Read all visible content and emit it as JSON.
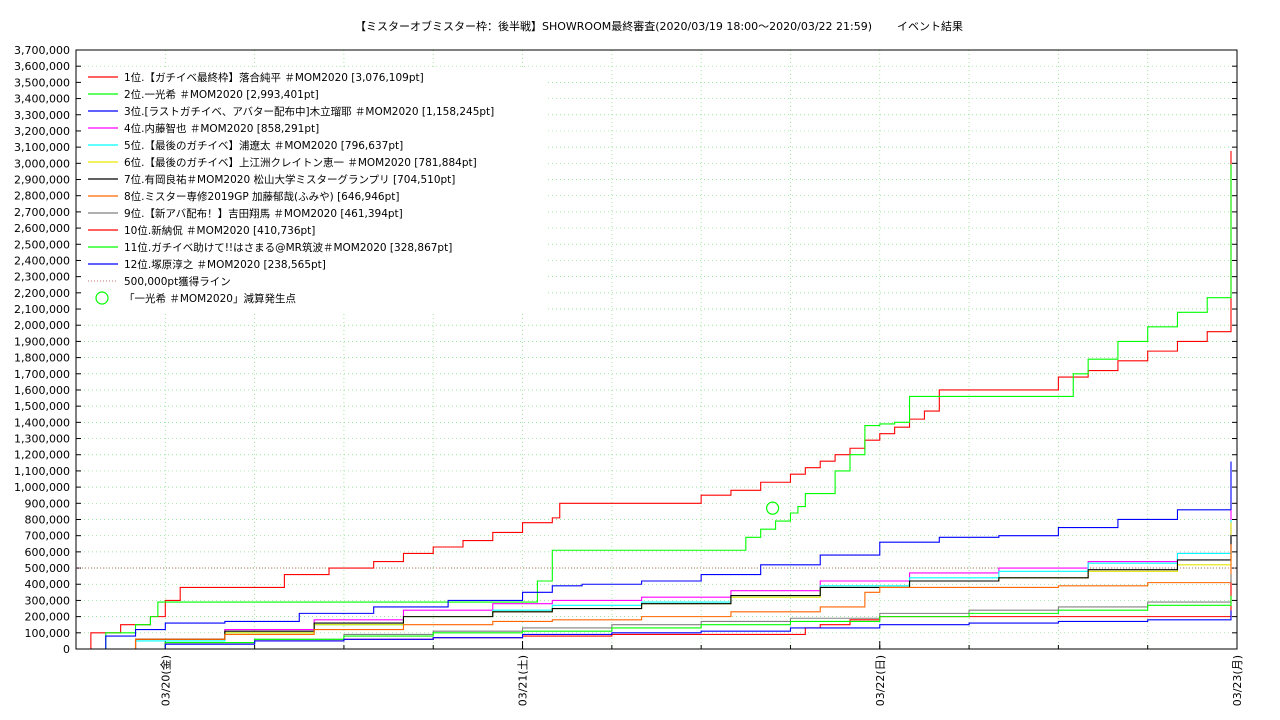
{
  "chart_data": {
    "type": "line",
    "title": "【ミスターオブミスター枠：後半戦】SHOWROOM最終審査(2020/03/19 18:00～2020/03/22 21:59)",
    "subtitle": "イベント結果",
    "xlabel": "",
    "ylabel": "",
    "ylim": [
      0,
      3700000
    ],
    "y_ticks": [
      "0",
      "100,000",
      "200,000",
      "300,000",
      "400,000",
      "500,000",
      "600,000",
      "700,000",
      "800,000",
      "900,000",
      "1,000,000",
      "1,100,000",
      "1,200,000",
      "1,300,000",
      "1,400,000",
      "1,500,000",
      "1,600,000",
      "1,700,000",
      "1,800,000",
      "1,900,000",
      "2,000,000",
      "2,100,000",
      "2,200,000",
      "2,300,000",
      "2,400,000",
      "2,500,000",
      "2,600,000",
      "2,700,000",
      "2,800,000",
      "2,900,000",
      "3,000,000",
      "3,100,000",
      "3,200,000",
      "3,300,000",
      "3,400,000",
      "3,500,000",
      "3,600,000",
      "3,700,000"
    ],
    "x_axis": "days since 2020/03/19 18:00",
    "xlim": [
      0,
      78
    ],
    "x_ticks": [
      {
        "label": "03/20(金)",
        "x": 6
      },
      {
        "label": "03/21(土)",
        "x": 30
      },
      {
        "label": "03/22(日)",
        "x": 54
      },
      {
        "label": "03/23(月)",
        "x": 78
      }
    ],
    "grid": true,
    "legend_position": "top-left",
    "series": [
      {
        "name": "1位.【ガチイベ最終枠】落合純平 ＃MOM2020 [3,076,109pt]",
        "color": "#ff0000",
        "points": [
          [
            0,
            0
          ],
          [
            1,
            100000
          ],
          [
            3,
            150000
          ],
          [
            5,
            200000
          ],
          [
            6,
            300000
          ],
          [
            7,
            380000
          ],
          [
            13,
            380000
          ],
          [
            14,
            460000
          ],
          [
            17,
            500000
          ],
          [
            20,
            540000
          ],
          [
            22,
            590000
          ],
          [
            24,
            630000
          ],
          [
            26,
            670000
          ],
          [
            28,
            720000
          ],
          [
            30,
            780000
          ],
          [
            32,
            810000
          ],
          [
            32.5,
            900000
          ],
          [
            36,
            900000
          ],
          [
            40,
            900000
          ],
          [
            42,
            950000
          ],
          [
            44,
            980000
          ],
          [
            46,
            1030000
          ],
          [
            48,
            1080000
          ],
          [
            49,
            1120000
          ],
          [
            50,
            1160000
          ],
          [
            51,
            1200000
          ],
          [
            52,
            1240000
          ],
          [
            53,
            1290000
          ],
          [
            54,
            1330000
          ],
          [
            55,
            1370000
          ],
          [
            56,
            1420000
          ],
          [
            57,
            1470000
          ],
          [
            58,
            1600000
          ],
          [
            61,
            1600000
          ],
          [
            64,
            1600000
          ],
          [
            66,
            1680000
          ],
          [
            68,
            1720000
          ],
          [
            70,
            1780000
          ],
          [
            72,
            1840000
          ],
          [
            74,
            1900000
          ],
          [
            76,
            1960000
          ],
          [
            78,
            2020000
          ],
          [
            80,
            2080000
          ],
          [
            82,
            2080000
          ],
          [
            82.5,
            3076109
          ],
          [
            85,
            3076109
          ]
        ]
      },
      {
        "name": "2位.一光希 ＃MOM2020 [2,993,401pt]",
        "color": "#00ff00",
        "points": [
          [
            0,
            0
          ],
          [
            2,
            100000
          ],
          [
            4,
            150000
          ],
          [
            5,
            200000
          ],
          [
            5.5,
            290000
          ],
          [
            20,
            290000
          ],
          [
            30,
            290000
          ],
          [
            31,
            420000
          ],
          [
            32,
            610000
          ],
          [
            40,
            610000
          ],
          [
            44,
            610000
          ],
          [
            45,
            690000
          ],
          [
            46,
            740000
          ],
          [
            47,
            790000
          ],
          [
            48,
            840000
          ],
          [
            48.5,
            880000
          ],
          [
            49,
            960000
          ],
          [
            50,
            960000
          ],
          [
            51,
            1100000
          ],
          [
            52,
            1200000
          ],
          [
            53,
            1380000
          ],
          [
            54,
            1390000
          ],
          [
            55,
            1400000
          ],
          [
            56,
            1560000
          ],
          [
            62,
            1560000
          ],
          [
            66,
            1560000
          ],
          [
            67,
            1700000
          ],
          [
            68,
            1790000
          ],
          [
            70,
            1900000
          ],
          [
            72,
            1990000
          ],
          [
            74,
            2080000
          ],
          [
            76,
            2170000
          ],
          [
            78,
            2180000
          ],
          [
            80,
            2190000
          ],
          [
            82,
            2200000
          ],
          [
            82.5,
            2993401
          ],
          [
            85,
            2993401
          ]
        ]
      },
      {
        "name": "3位.[ラストガチイベ、アバター配布中]木立瑠耶 ＃MOM2020 [1,158,245pt]",
        "color": "#0000ff",
        "points": [
          [
            0,
            0
          ],
          [
            2,
            80000
          ],
          [
            4,
            120000
          ],
          [
            6,
            160000
          ],
          [
            10,
            170000
          ],
          [
            15,
            220000
          ],
          [
            20,
            260000
          ],
          [
            25,
            300000
          ],
          [
            30,
            350000
          ],
          [
            32,
            390000
          ],
          [
            34,
            400000
          ],
          [
            38,
            420000
          ],
          [
            42,
            460000
          ],
          [
            46,
            520000
          ],
          [
            50,
            580000
          ],
          [
            54,
            660000
          ],
          [
            58,
            690000
          ],
          [
            62,
            700000
          ],
          [
            66,
            750000
          ],
          [
            70,
            800000
          ],
          [
            74,
            860000
          ],
          [
            78,
            890000
          ],
          [
            81,
            920000
          ],
          [
            82,
            960000
          ],
          [
            82.3,
            1158245
          ],
          [
            85,
            1158245
          ]
        ]
      },
      {
        "name": "4位.内藤智也 ＃MOM2020 [858,291pt]",
        "color": "#ff00ff",
        "points": [
          [
            0,
            0
          ],
          [
            4,
            60000
          ],
          [
            10,
            120000
          ],
          [
            16,
            180000
          ],
          [
            22,
            240000
          ],
          [
            28,
            280000
          ],
          [
            32,
            300000
          ],
          [
            38,
            320000
          ],
          [
            44,
            360000
          ],
          [
            50,
            420000
          ],
          [
            56,
            470000
          ],
          [
            62,
            500000
          ],
          [
            68,
            540000
          ],
          [
            74,
            590000
          ],
          [
            78,
            620000
          ],
          [
            82,
            650000
          ],
          [
            82.5,
            858291
          ],
          [
            85,
            858291
          ]
        ]
      },
      {
        "name": "5位.【最後のガチイベ】浦遼太 ＃MOM2020 [796,637pt]",
        "color": "#00ffff",
        "points": [
          [
            0,
            0
          ],
          [
            4,
            50000
          ],
          [
            10,
            100000
          ],
          [
            16,
            150000
          ],
          [
            22,
            200000
          ],
          [
            28,
            240000
          ],
          [
            32,
            270000
          ],
          [
            38,
            290000
          ],
          [
            44,
            330000
          ],
          [
            50,
            390000
          ],
          [
            56,
            440000
          ],
          [
            62,
            480000
          ],
          [
            68,
            530000
          ],
          [
            74,
            590000
          ],
          [
            78,
            630000
          ],
          [
            82,
            660000
          ],
          [
            82.5,
            796637
          ],
          [
            85,
            796637
          ]
        ]
      },
      {
        "name": "6位.【最後のガチイベ】上江洲クレイトン恵一 ＃MOM2020 [781,884pt]",
        "color": "#e6e600",
        "points": [
          [
            0,
            0
          ],
          [
            4,
            60000
          ],
          [
            10,
            100000
          ],
          [
            16,
            150000
          ],
          [
            22,
            200000
          ],
          [
            28,
            230000
          ],
          [
            32,
            250000
          ],
          [
            38,
            280000
          ],
          [
            44,
            320000
          ],
          [
            50,
            380000
          ],
          [
            56,
            420000
          ],
          [
            62,
            440000
          ],
          [
            68,
            480000
          ],
          [
            74,
            520000
          ],
          [
            78,
            550000
          ],
          [
            82,
            580000
          ],
          [
            82.5,
            781884
          ],
          [
            85,
            781884
          ]
        ]
      },
      {
        "name": "7位.有岡良祐＃MOM2020 松山大学ミスターグランプリ [704,510pt]",
        "color": "#000000",
        "points": [
          [
            0,
            0
          ],
          [
            4,
            60000
          ],
          [
            10,
            110000
          ],
          [
            16,
            160000
          ],
          [
            22,
            200000
          ],
          [
            28,
            230000
          ],
          [
            32,
            250000
          ],
          [
            38,
            280000
          ],
          [
            44,
            330000
          ],
          [
            50,
            380000
          ],
          [
            56,
            420000
          ],
          [
            62,
            440000
          ],
          [
            68,
            490000
          ],
          [
            74,
            550000
          ],
          [
            78,
            580000
          ],
          [
            82,
            600000
          ],
          [
            82.5,
            704510
          ],
          [
            85,
            704510
          ]
        ]
      },
      {
        "name": "8位.ミスター専修2019GP 加藤郁哉(ふみや) [646,946pt]",
        "color": "#ff6600",
        "points": [
          [
            0,
            0
          ],
          [
            4,
            60000
          ],
          [
            10,
            90000
          ],
          [
            16,
            120000
          ],
          [
            22,
            150000
          ],
          [
            28,
            170000
          ],
          [
            32,
            180000
          ],
          [
            38,
            200000
          ],
          [
            44,
            230000
          ],
          [
            50,
            260000
          ],
          [
            52,
            260000
          ],
          [
            53,
            350000
          ],
          [
            54,
            380000
          ],
          [
            60,
            380000
          ],
          [
            66,
            390000
          ],
          [
            72,
            410000
          ],
          [
            78,
            430000
          ],
          [
            81,
            440000
          ],
          [
            81.5,
            520000
          ],
          [
            82,
            520000
          ],
          [
            82.5,
            646946
          ],
          [
            85,
            646946
          ]
        ]
      },
      {
        "name": "9位.【新アバ配布！】吉田翔馬 ＃MOM2020 [461,394pt]",
        "color": "#808080",
        "points": [
          [
            0,
            0
          ],
          [
            6,
            40000
          ],
          [
            12,
            60000
          ],
          [
            18,
            90000
          ],
          [
            24,
            110000
          ],
          [
            30,
            130000
          ],
          [
            36,
            150000
          ],
          [
            42,
            170000
          ],
          [
            48,
            190000
          ],
          [
            54,
            220000
          ],
          [
            60,
            240000
          ],
          [
            66,
            260000
          ],
          [
            72,
            290000
          ],
          [
            78,
            310000
          ],
          [
            81,
            310000
          ],
          [
            82,
            460000
          ],
          [
            85,
            461394
          ]
        ]
      },
      {
        "name": "10位.新納侃 ＃MOM2020 [410,736pt]",
        "color": "#ff0000",
        "points": [
          [
            0,
            0
          ],
          [
            6,
            40000
          ],
          [
            12,
            50000
          ],
          [
            18,
            60000
          ],
          [
            24,
            70000
          ],
          [
            30,
            80000
          ],
          [
            36,
            90000
          ],
          [
            44,
            90000
          ],
          [
            48,
            90000
          ],
          [
            49,
            130000
          ],
          [
            50,
            150000
          ],
          [
            52,
            180000
          ],
          [
            54,
            200000
          ],
          [
            60,
            200000
          ],
          [
            66,
            200000
          ],
          [
            72,
            200000
          ],
          [
            78,
            210000
          ],
          [
            80,
            300000
          ],
          [
            81,
            340000
          ],
          [
            82,
            400000
          ],
          [
            85,
            410736
          ]
        ]
      },
      {
        "name": "11位.ガチイベ助けて!!はさまる@MR筑波＃MOM2020 [328,867pt]",
        "color": "#00ff00",
        "points": [
          [
            0,
            0
          ],
          [
            6,
            40000
          ],
          [
            12,
            60000
          ],
          [
            18,
            80000
          ],
          [
            24,
            100000
          ],
          [
            30,
            110000
          ],
          [
            36,
            130000
          ],
          [
            42,
            150000
          ],
          [
            48,
            170000
          ],
          [
            54,
            200000
          ],
          [
            60,
            220000
          ],
          [
            66,
            240000
          ],
          [
            72,
            270000
          ],
          [
            78,
            290000
          ],
          [
            81,
            300000
          ],
          [
            82,
            320000
          ],
          [
            85,
            328867
          ]
        ]
      },
      {
        "name": "12位.塚原淳之 ＃MOM2020 [238,565pt]",
        "color": "#0000ff",
        "points": [
          [
            0,
            0
          ],
          [
            6,
            30000
          ],
          [
            12,
            50000
          ],
          [
            18,
            60000
          ],
          [
            24,
            70000
          ],
          [
            30,
            90000
          ],
          [
            36,
            100000
          ],
          [
            42,
            110000
          ],
          [
            48,
            130000
          ],
          [
            54,
            150000
          ],
          [
            60,
            160000
          ],
          [
            66,
            170000
          ],
          [
            72,
            180000
          ],
          [
            78,
            200000
          ],
          [
            81,
            220000
          ],
          [
            82,
            238565
          ],
          [
            85,
            238565
          ]
        ]
      }
    ],
    "reference_line": {
      "name": "500,000pt獲得ライン",
      "value": 500000,
      "color": "#c07070"
    },
    "marker": {
      "name": "「一光希 ＃MOM2020」減算発生点",
      "x": 46.8,
      "y": 870000,
      "color": "#00ff00"
    }
  }
}
